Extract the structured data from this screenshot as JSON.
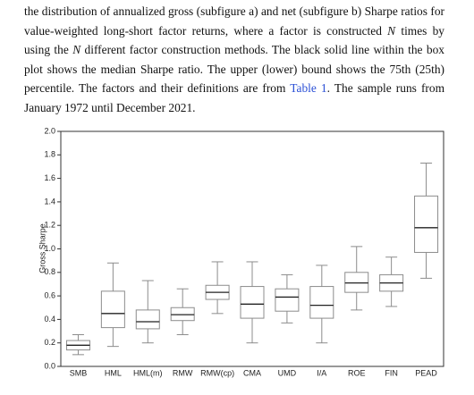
{
  "paragraph": [
    "the distribution of annualized gross (subfigure a) and net (subfigure b) Sharpe ratios for value-weighted long-short factor returns, where a factor is constructed ",
    "N",
    " times by using the ",
    "N",
    " different factor construction methods. The black solid line within the box plot shows the median Sharpe ratio. The upper (lower) bound shows the 75th (25th) percentile. The factors and their definitions are from ",
    "Table 1",
    ". The sample runs from January 1972 until December 2021."
  ],
  "chart_data": {
    "type": "box",
    "y_label": "Gross Sharpe",
    "categories": [
      "SMB",
      "HML",
      "HML(m)",
      "RMW",
      "RMW(cp)",
      "CMA",
      "UMD",
      "I/A",
      "ROE",
      "FIN",
      "PEAD"
    ],
    "boxes": [
      {
        "whislo": 0.1,
        "q1": 0.14,
        "med": 0.18,
        "q3": 0.22,
        "whishi": 0.27
      },
      {
        "whislo": 0.17,
        "q1": 0.33,
        "med": 0.45,
        "q3": 0.64,
        "whishi": 0.88
      },
      {
        "whislo": 0.2,
        "q1": 0.32,
        "med": 0.38,
        "q3": 0.48,
        "whishi": 0.73
      },
      {
        "whislo": 0.27,
        "q1": 0.39,
        "med": 0.44,
        "q3": 0.5,
        "whishi": 0.66
      },
      {
        "whislo": 0.45,
        "q1": 0.57,
        "med": 0.63,
        "q3": 0.69,
        "whishi": 0.89
      },
      {
        "whislo": 0.2,
        "q1": 0.41,
        "med": 0.53,
        "q3": 0.68,
        "whishi": 0.89
      },
      {
        "whislo": 0.37,
        "q1": 0.47,
        "med": 0.59,
        "q3": 0.66,
        "whishi": 0.78
      },
      {
        "whislo": 0.2,
        "q1": 0.41,
        "med": 0.52,
        "q3": 0.68,
        "whishi": 0.86
      },
      {
        "whislo": 0.48,
        "q1": 0.63,
        "med": 0.71,
        "q3": 0.8,
        "whishi": 1.02
      },
      {
        "whislo": 0.51,
        "q1": 0.64,
        "med": 0.71,
        "q3": 0.78,
        "whishi": 0.93
      },
      {
        "whislo": 0.75,
        "q1": 0.97,
        "med": 1.18,
        "q3": 1.45,
        "whishi": 1.73
      }
    ],
    "ylim": [
      0,
      2
    ],
    "yticks": [
      {
        "value": 0,
        "label": "0.0"
      },
      0.2,
      0.4,
      0.6,
      0.8,
      {
        "value": 1,
        "label": "1.0"
      },
      1.2,
      1.4,
      1.6,
      1.8,
      {
        "value": 2,
        "label": "2.0"
      }
    ],
    "box_color": "#8c8c8c",
    "median_color": "#222222"
  }
}
